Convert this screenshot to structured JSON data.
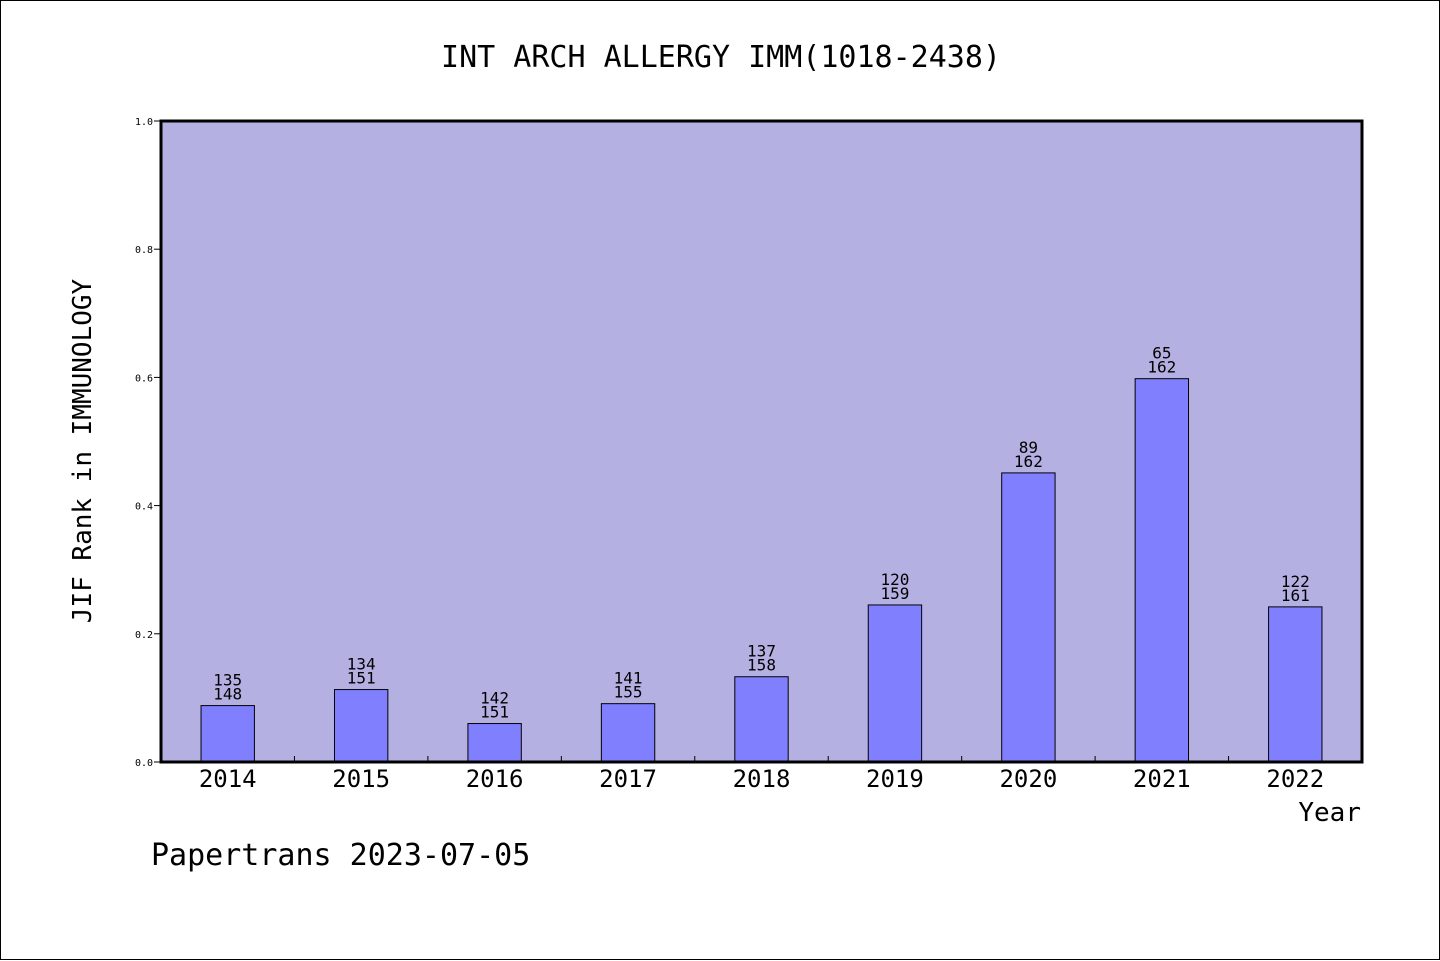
{
  "chart_data": {
    "type": "bar",
    "title": "INT ARCH ALLERGY IMM(1018-2438)",
    "xlabel": "Year",
    "ylabel": "JIF Rank in IMMUNOLOGY",
    "ylim": [
      0,
      1.0
    ],
    "y_ticks": [
      "0.0",
      "0.2",
      "0.4",
      "0.6",
      "0.8",
      "1.0"
    ],
    "categories": [
      "2014",
      "2015",
      "2016",
      "2017",
      "2018",
      "2019",
      "2020",
      "2021",
      "2022"
    ],
    "values": [
      0.088,
      0.113,
      0.06,
      0.091,
      0.133,
      0.245,
      0.451,
      0.598,
      0.242
    ],
    "bar_labels": [
      {
        "rank": "135",
        "total": "148"
      },
      {
        "rank": "134",
        "total": "151"
      },
      {
        "rank": "142",
        "total": "151"
      },
      {
        "rank": "141",
        "total": "155"
      },
      {
        "rank": "137",
        "total": "158"
      },
      {
        "rank": "120",
        "total": "159"
      },
      {
        "rank": "89",
        "total": "162"
      },
      {
        "rank": "65",
        "total": "162"
      },
      {
        "rank": "122",
        "total": "161"
      }
    ],
    "grid": false,
    "colors": {
      "plot_background": "#b5b0e2",
      "bar_fill": "#8080ff",
      "bar_stroke": "#000000"
    }
  },
  "footer": {
    "text": "Papertrans 2023-07-05"
  }
}
